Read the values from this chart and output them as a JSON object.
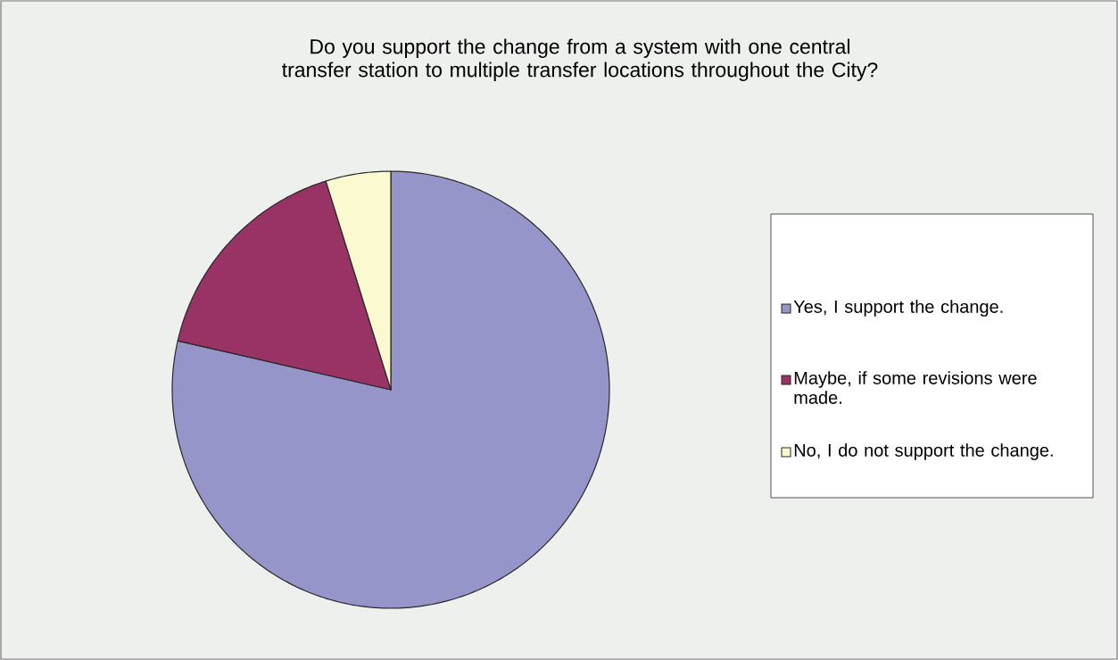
{
  "chart_data": {
    "type": "pie",
    "title": "Do you support the change from a system with one central transfer station to multiple transfer locations throughout the City?",
    "categories": [
      "Yes, I support the change.",
      "Maybe, if some revisions were made.",
      "No, I do not support the change."
    ],
    "values": [
      78.6,
      16.6,
      4.8
    ],
    "colors": [
      "#9595c9",
      "#993366",
      "#fbf9cf"
    ],
    "legend": "right"
  }
}
